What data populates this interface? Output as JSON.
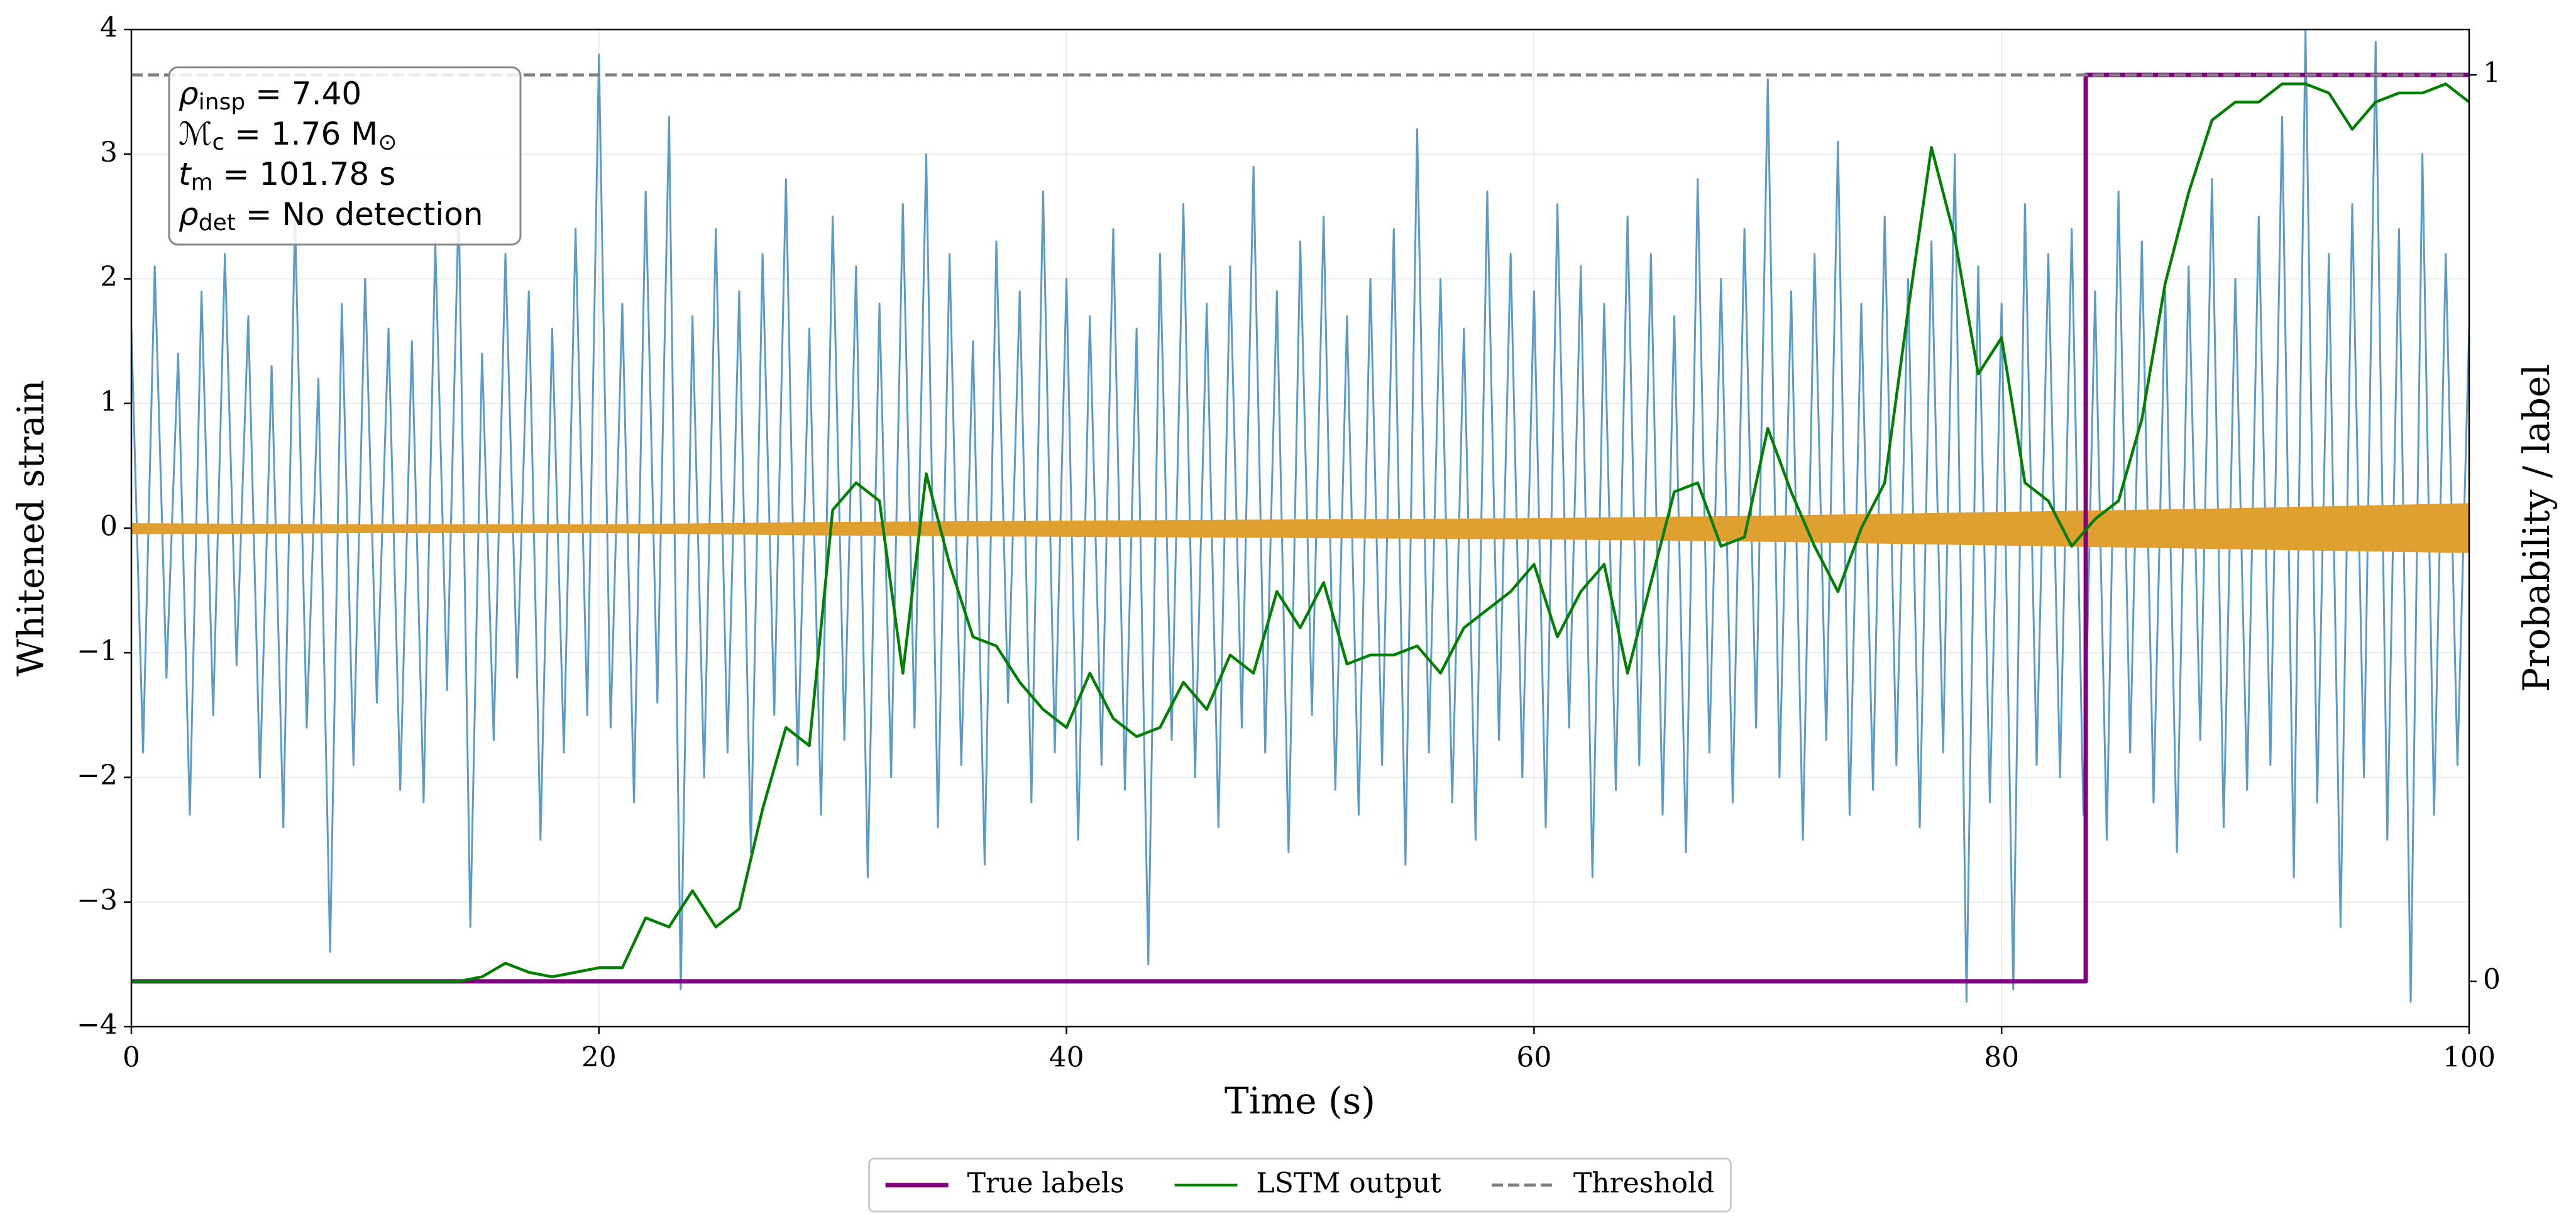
{
  "chart_data": {
    "type": "line",
    "xlabel": "Time (s)",
    "ylabel": "Whitened strain",
    "y2label": "Probability / label",
    "xlim": [
      0,
      100
    ],
    "xticks": [
      0,
      20,
      40,
      60,
      80,
      100
    ],
    "ylim": [
      -4,
      4
    ],
    "yticks": [
      {
        "value": -4,
        "label": "−4"
      },
      {
        "value": -3,
        "label": "−3"
      },
      {
        "value": -2,
        "label": "−2"
      },
      {
        "value": -1,
        "label": "−1"
      },
      0,
      1,
      2,
      3,
      4
    ],
    "y2lim": [
      -0.05,
      1.05
    ],
    "y2ticks": [
      0,
      1
    ],
    "grid": true,
    "legend": "below",
    "annotation": [
      {
        "pre": "ρ",
        "sub": "insp",
        "post": " = 7.40"
      },
      {
        "pre": "ℳ",
        "sub": "c",
        "post": " = 1.76 M",
        "post_sub": "⊙"
      },
      {
        "pre": "t",
        "sub": "m",
        "post": " = 101.78 s"
      },
      {
        "pre": "ρ",
        "sub": "det",
        "post": " = No detection"
      }
    ],
    "series": [
      {
        "color": "#5b9bc8",
        "linewidth": 3,
        "x": [
          0,
          0.5,
          1,
          1.5,
          2,
          2.5,
          3,
          3.5,
          4,
          4.5,
          5,
          5.5,
          6,
          6.5,
          7,
          7.5,
          8,
          8.5,
          9,
          9.5,
          10,
          10.5,
          11,
          11.5,
          12,
          12.5,
          13,
          13.5,
          14,
          14.5,
          15,
          15.5,
          16,
          16.5,
          17,
          17.5,
          18,
          18.5,
          19,
          19.5,
          20,
          20.5,
          21,
          21.5,
          22,
          22.5,
          23,
          23.5,
          24,
          24.5,
          25,
          25.5,
          26,
          26.5,
          27,
          27.5,
          28,
          28.5,
          29,
          29.5,
          30,
          30.5,
          31,
          31.5,
          32,
          32.5,
          33,
          33.5,
          34,
          34.5,
          35,
          35.5,
          36,
          36.5,
          37,
          37.5,
          38,
          38.5,
          39,
          39.5,
          40,
          40.5,
          41,
          41.5,
          42,
          42.5,
          43,
          43.5,
          44,
          44.5,
          45,
          45.5,
          46,
          46.5,
          47,
          47.5,
          48,
          48.5,
          49,
          49.5,
          50,
          50.5,
          51,
          51.5,
          52,
          52.5,
          53,
          53.5,
          54,
          54.5,
          55,
          55.5,
          56,
          56.5,
          57,
          57.5,
          58,
          58.5,
          59,
          59.5,
          60,
          60.5,
          61,
          61.5,
          62,
          62.5,
          63,
          63.5,
          64,
          64.5,
          65,
          65.5,
          66,
          66.5,
          67,
          67.5,
          68,
          68.5,
          69,
          69.5,
          70,
          70.5,
          71,
          71.5,
          72,
          72.5,
          73,
          73.5,
          74,
          74.5,
          75,
          75.5,
          76,
          76.5,
          77,
          77.5,
          78,
          78.5,
          79,
          79.5,
          80,
          80.5,
          81,
          81.5,
          82,
          82.5,
          83,
          83.5,
          84,
          84.5,
          85,
          85.5,
          86,
          86.5,
          87,
          87.5,
          88,
          88.5,
          89,
          89.5,
          90,
          90.5,
          91,
          91.5,
          92,
          92.5,
          93,
          93.5,
          94,
          94.5,
          95,
          95.5,
          96,
          96.5,
          97,
          97.5,
          98,
          98.5,
          99,
          99.5,
          100
        ],
        "values": [
          1.6,
          -1.8,
          2.1,
          -1.2,
          1.4,
          -2.3,
          1.9,
          -1.5,
          2.2,
          -1.1,
          1.7,
          -2.0,
          1.3,
          -2.4,
          2.5,
          -1.6,
          1.2,
          -3.4,
          1.8,
          -1.9,
          2.0,
          -1.4,
          1.6,
          -2.1,
          1.5,
          -2.2,
          2.3,
          -1.3,
          2.6,
          -3.2,
          1.4,
          -1.7,
          2.2,
          -1.2,
          1.9,
          -2.5,
          1.6,
          -1.8,
          2.4,
          -1.5,
          3.8,
          -1.6,
          1.8,
          -2.2,
          2.7,
          -1.4,
          3.3,
          -3.7,
          1.7,
          -2.0,
          2.4,
          -1.8,
          1.9,
          -2.6,
          2.2,
          -1.5,
          2.8,
          -1.9,
          1.6,
          -2.3,
          2.5,
          -1.7,
          2.1,
          -2.8,
          1.8,
          -2.0,
          2.6,
          -1.6,
          3.0,
          -2.4,
          2.2,
          -1.9,
          1.5,
          -2.7,
          2.3,
          -1.4,
          1.9,
          -2.2,
          2.7,
          -1.8,
          2.0,
          -2.5,
          1.7,
          -1.9,
          2.4,
          -2.1,
          1.6,
          -3.5,
          2.2,
          -1.7,
          2.6,
          -2.0,
          1.8,
          -2.4,
          2.1,
          -1.6,
          2.9,
          -1.8,
          1.9,
          -2.6,
          2.3,
          -1.5,
          2.5,
          -2.1,
          1.7,
          -2.3,
          2.0,
          -1.9,
          2.4,
          -2.7,
          3.2,
          -1.8,
          2.0,
          -2.2,
          1.6,
          -2.5,
          2.7,
          -1.7,
          2.2,
          -2.0,
          1.9,
          -2.4,
          2.6,
          -1.6,
          2.1,
          -2.8,
          1.8,
          -2.1,
          2.5,
          -1.9,
          2.2,
          -2.3,
          1.7,
          -2.6,
          2.8,
          -1.8,
          2.0,
          -2.2,
          2.4,
          -1.6,
          3.6,
          -2.0,
          1.9,
          -2.5,
          2.2,
          -1.7,
          3.1,
          -2.3,
          1.8,
          -2.1,
          2.5,
          -1.9,
          2.0,
          -2.4,
          2.3,
          -1.8,
          3.0,
          -3.8,
          2.1,
          -2.2,
          1.8,
          -3.7,
          2.6,
          -1.9,
          2.2,
          -2.0,
          2.4,
          -2.3,
          1.9,
          -2.5,
          2.7,
          -1.8,
          2.3,
          -2.2,
          1.9,
          -2.6,
          2.1,
          -1.7,
          2.8,
          -2.4,
          2.0,
          -2.1,
          2.5,
          -1.9,
          3.3,
          -2.8,
          4.0,
          -2.2,
          2.2,
          -3.2,
          2.6,
          -2.0,
          3.9,
          -2.5,
          2.4,
          -3.8,
          3.0,
          -2.3,
          2.2,
          -1.9,
          1.6
        ]
      },
      {
        "color": "#e0a030",
        "style": "area",
        "x": [
          0,
          10,
          20,
          30,
          40,
          50,
          60,
          70,
          80,
          90,
          100
        ],
        "values": [
          0.04,
          0.03,
          0.03,
          0.05,
          0.06,
          0.07,
          0.08,
          0.1,
          0.13,
          0.16,
          0.2
        ],
        "lower": [
          -0.05,
          -0.04,
          -0.04,
          -0.06,
          -0.07,
          -0.08,
          -0.09,
          -0.11,
          -0.14,
          -0.17,
          -0.2
        ]
      },
      {
        "name": "True labels",
        "color": "purple",
        "linewidth": 7,
        "axis": "y2",
        "x": [
          0,
          83.6,
          83.6,
          100
        ],
        "values": [
          0,
          0,
          1,
          1
        ]
      },
      {
        "name": "LSTM output",
        "color": "green",
        "linewidth": 4.5,
        "axis": "y2",
        "x": [
          0,
          1,
          2,
          3,
          4,
          5,
          6,
          7,
          8,
          9,
          10,
          11,
          12,
          13,
          14,
          15,
          16,
          17,
          18,
          19,
          20,
          21,
          22,
          23,
          24,
          25,
          26,
          27,
          28,
          29,
          30,
          31,
          32,
          33,
          34,
          35,
          36,
          37,
          38,
          39,
          40,
          41,
          42,
          43,
          44,
          45,
          46,
          47,
          48,
          49,
          50,
          51,
          52,
          53,
          54,
          55,
          56,
          57,
          58,
          59,
          60,
          61,
          62,
          63,
          64,
          65,
          66,
          67,
          68,
          69,
          70,
          71,
          72,
          73,
          74,
          75,
          76,
          77,
          78,
          79,
          80,
          81,
          82,
          83,
          84,
          85,
          86,
          87,
          88,
          89,
          90,
          91,
          92,
          93,
          94,
          95,
          96,
          97,
          98,
          99,
          100
        ],
        "values": [
          0,
          0,
          0,
          0,
          0,
          0,
          0,
          0,
          0,
          0,
          0,
          0,
          0,
          0,
          0,
          0.005,
          0.02,
          0.01,
          0.005,
          0.01,
          0.015,
          0.015,
          0.07,
          0.06,
          0.1,
          0.06,
          0.08,
          0.19,
          0.28,
          0.26,
          0.52,
          0.55,
          0.53,
          0.34,
          0.56,
          0.46,
          0.38,
          0.37,
          0.33,
          0.3,
          0.28,
          0.34,
          0.29,
          0.27,
          0.28,
          0.33,
          0.3,
          0.36,
          0.34,
          0.43,
          0.39,
          0.44,
          0.35,
          0.36,
          0.36,
          0.37,
          0.34,
          0.39,
          0.41,
          0.43,
          0.46,
          0.38,
          0.43,
          0.46,
          0.34,
          0.44,
          0.54,
          0.55,
          0.48,
          0.49,
          0.61,
          0.54,
          0.48,
          0.43,
          0.5,
          0.55,
          0.74,
          0.92,
          0.82,
          0.67,
          0.71,
          0.55,
          0.53,
          0.48,
          0.51,
          0.53,
          0.62,
          0.77,
          0.87,
          0.95,
          0.97,
          0.97,
          0.99,
          0.99,
          0.98,
          0.94,
          0.97,
          0.98,
          0.98,
          0.99,
          0.97
        ]
      },
      {
        "name": "Threshold",
        "color": "gray",
        "linewidth": 5,
        "dash": true,
        "axis": "y2",
        "x": [
          0,
          100
        ],
        "values": [
          1,
          1
        ]
      }
    ]
  }
}
